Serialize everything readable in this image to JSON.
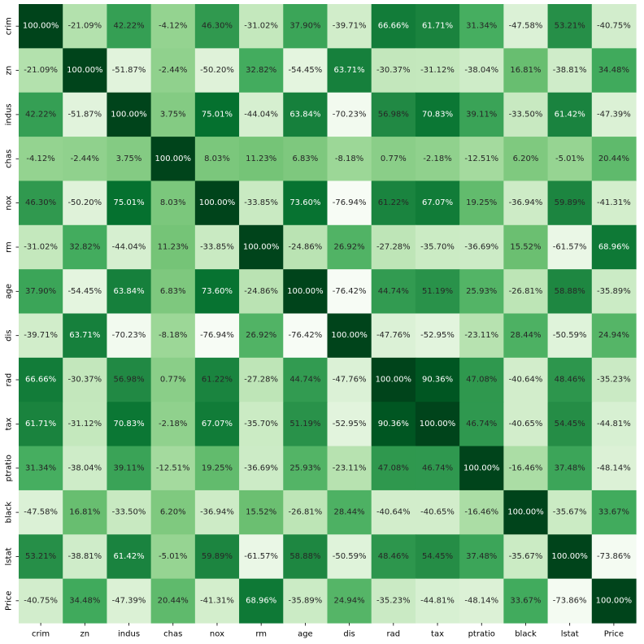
{
  "chart_data": {
    "type": "heatmap",
    "title": "",
    "xlabel": "",
    "ylabel": "",
    "labels": [
      "crim",
      "zn",
      "indus",
      "chas",
      "nox",
      "rm",
      "age",
      "dis",
      "rad",
      "tax",
      "ptratio",
      "black",
      "lstat",
      "Price"
    ],
    "value_format": "percent_2dp",
    "colormap": "Greens",
    "color_range": [
      -0.7694,
      1.0
    ],
    "colorbar": false,
    "colors": {
      "low": "#f7fcf5",
      "high": "#00441b",
      "text_dark": "#262626",
      "text_light": "#ffffff"
    },
    "matrix": [
      [
        "100.00%",
        "-21.09%",
        "42.22%",
        "-4.12%",
        "46.30%",
        "-31.02%",
        "37.90%",
        "-39.71%",
        "66.66%",
        "61.71%",
        "31.34%",
        "-47.58%",
        "53.21%",
        "-40.75%"
      ],
      [
        "-21.09%",
        "100.00%",
        "-51.87%",
        "-2.44%",
        "-50.20%",
        "32.82%",
        "-54.45%",
        "63.71%",
        "-30.37%",
        "-31.12%",
        "-38.04%",
        "16.81%",
        "-38.81%",
        "34.48%"
      ],
      [
        "42.22%",
        "-51.87%",
        "100.00%",
        "3.75%",
        "75.01%",
        "-44.04%",
        "63.84%",
        "-70.23%",
        "56.98%",
        "70.83%",
        "39.11%",
        "-33.50%",
        "61.42%",
        "-47.39%"
      ],
      [
        "-4.12%",
        "-2.44%",
        "3.75%",
        "100.00%",
        "8.03%",
        "11.23%",
        "6.83%",
        "-8.18%",
        "0.77%",
        "-2.18%",
        "-12.51%",
        "6.20%",
        "-5.01%",
        "20.44%"
      ],
      [
        "46.30%",
        "-50.20%",
        "75.01%",
        "8.03%",
        "100.00%",
        "-33.85%",
        "73.60%",
        "-76.94%",
        "61.22%",
        "67.07%",
        "19.25%",
        "-36.94%",
        "59.89%",
        "-41.31%"
      ],
      [
        "-31.02%",
        "32.82%",
        "-44.04%",
        "11.23%",
        "-33.85%",
        "100.00%",
        "-24.86%",
        "26.92%",
        "-27.28%",
        "-35.70%",
        "-36.69%",
        "15.52%",
        "-61.57%",
        "68.96%"
      ],
      [
        "37.90%",
        "-54.45%",
        "63.84%",
        "6.83%",
        "73.60%",
        "-24.86%",
        "100.00%",
        "-76.42%",
        "44.74%",
        "51.19%",
        "25.93%",
        "-26.81%",
        "58.88%",
        "-35.89%"
      ],
      [
        "-39.71%",
        "63.71%",
        "-70.23%",
        "-8.18%",
        "-76.94%",
        "26.92%",
        "-76.42%",
        "100.00%",
        "-47.76%",
        "-52.95%",
        "-23.11%",
        "28.44%",
        "-50.59%",
        "24.94%"
      ],
      [
        "66.66%",
        "-30.37%",
        "56.98%",
        "0.77%",
        "61.22%",
        "-27.28%",
        "44.74%",
        "-47.76%",
        "100.00%",
        "90.36%",
        "47.08%",
        "-40.64%",
        "48.46%",
        "-35.23%"
      ],
      [
        "61.71%",
        "-31.12%",
        "70.83%",
        "-2.18%",
        "67.07%",
        "-35.70%",
        "51.19%",
        "-52.95%",
        "90.36%",
        "100.00%",
        "46.74%",
        "-40.65%",
        "54.45%",
        "-44.81%"
      ],
      [
        "31.34%",
        "-38.04%",
        "39.11%",
        "-12.51%",
        "19.25%",
        "-36.69%",
        "25.93%",
        "-23.11%",
        "47.08%",
        "46.74%",
        "100.00%",
        "-16.46%",
        "37.48%",
        "-48.14%"
      ],
      [
        "-47.58%",
        "16.81%",
        "-33.50%",
        "6.20%",
        "-36.94%",
        "15.52%",
        "-26.81%",
        "28.44%",
        "-40.64%",
        "-40.65%",
        "-16.46%",
        "100.00%",
        "-35.67%",
        "33.67%"
      ],
      [
        "53.21%",
        "-38.81%",
        "61.42%",
        "-5.01%",
        "59.89%",
        "-61.57%",
        "58.88%",
        "-50.59%",
        "48.46%",
        "54.45%",
        "37.48%",
        "-35.67%",
        "100.00%",
        "-73.86%"
      ],
      [
        "-40.75%",
        "34.48%",
        "-47.39%",
        "20.44%",
        "-41.31%",
        "68.96%",
        "-35.89%",
        "24.94%",
        "-35.23%",
        "-44.81%",
        "-48.14%",
        "33.67%",
        "-73.86%",
        "100.00%"
      ]
    ]
  }
}
